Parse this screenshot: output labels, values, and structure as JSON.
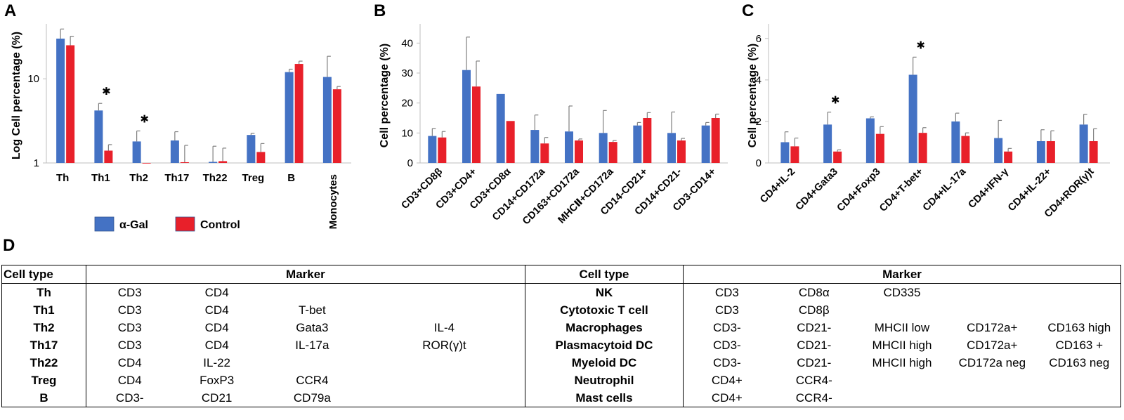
{
  "panel_labels": {
    "a": "A",
    "b": "B",
    "c": "C",
    "d": "D"
  },
  "colors": {
    "alpha_gal": "#4472C4",
    "control": "#E8202A",
    "error": "#7F7F7F",
    "axis": "#BFBFBF"
  },
  "chart_data": [
    {
      "panel": "A",
      "type": "bar",
      "scale": "log",
      "title": "",
      "xlabel": "",
      "ylabel": "Log Cell percentage (%)",
      "ylim": [
        1,
        40
      ],
      "yticks": [
        1,
        10
      ],
      "ytick_labels": [
        "1",
        "10"
      ],
      "categories": [
        "Th",
        "Th1",
        "Th2",
        "Th17",
        "Th22",
        "Treg",
        "B",
        "Monocytes"
      ],
      "series": [
        {
          "name": "α-Gal",
          "values": [
            30,
            4.2,
            1.8,
            1.85,
            1.03,
            2.15,
            12,
            10.5
          ],
          "errors": [
            9,
            0.9,
            0.6,
            0.5,
            0.55,
            0.1,
            1,
            8
          ]
        },
        {
          "name": "Control",
          "values": [
            25,
            1.4,
            1.0,
            1.02,
            1.05,
            1.35,
            15,
            7.5
          ],
          "errors": [
            7,
            0.25,
            0,
            0.6,
            0.45,
            0.35,
            1.2,
            0.6
          ]
        }
      ],
      "significant": [
        "Th1",
        "Th2"
      ],
      "significance_mark": "✱",
      "legend": {
        "position": "bottom",
        "labels": [
          "α-Gal",
          "Control"
        ]
      }
    },
    {
      "panel": "B",
      "type": "bar",
      "scale": "linear",
      "title": "",
      "xlabel": "",
      "ylabel": "Cell percentage (%)",
      "ylim": [
        0,
        45
      ],
      "yticks": [
        0,
        10,
        20,
        30,
        40
      ],
      "ytick_labels": [
        "0",
        "10",
        "20",
        "30",
        "40"
      ],
      "categories": [
        "CD3+CD8β",
        "CD3+CD4+",
        "CD3+CD8α",
        "CD14+CD172a",
        "CD163+CD172a",
        "MHCⅡ+CD172a",
        "CD14-CD21+",
        "CD14+CD21-",
        "CD3-CD14+"
      ],
      "series": [
        {
          "name": "α-Gal",
          "values": [
            9,
            31,
            23,
            11,
            10.5,
            10,
            12.5,
            10,
            12.5
          ],
          "errors": [
            2.5,
            11,
            0,
            5,
            8.5,
            7.5,
            1,
            7,
            1
          ]
        },
        {
          "name": "Control",
          "values": [
            8.5,
            25.5,
            14,
            6.5,
            7.5,
            7,
            15,
            7.5,
            15
          ],
          "errors": [
            2,
            8.5,
            0,
            2,
            0.5,
            0.5,
            1.8,
            0.7,
            1.3
          ]
        }
      ],
      "significant": []
    },
    {
      "panel": "C",
      "type": "bar",
      "scale": "linear",
      "title": "",
      "xlabel": "",
      "ylabel": "Cell percentage (%)",
      "ylim": [
        0,
        6.5
      ],
      "yticks": [
        0,
        2,
        4,
        6
      ],
      "ytick_labels": [
        "0",
        "2",
        "4",
        "6"
      ],
      "categories": [
        "CD4+IL-2",
        "CD4+Gata3",
        "CD4+Foxp3",
        "CD4+T-bet+",
        "CD4+IL-17a",
        "CD4+IFN-γ",
        "CD4+IL-22+",
        "CD4+ROR(γ)t"
      ],
      "series": [
        {
          "name": "α-Gal",
          "values": [
            1.0,
            1.85,
            2.15,
            4.25,
            2.0,
            1.2,
            1.05,
            1.85
          ],
          "errors": [
            0.5,
            0.6,
            0.07,
            0.85,
            0.4,
            0.85,
            0.55,
            0.5
          ]
        },
        {
          "name": "Control",
          "values": [
            0.8,
            0.55,
            1.4,
            1.45,
            1.3,
            0.55,
            1.05,
            1.05
          ],
          "errors": [
            0.4,
            0.08,
            0.35,
            0.25,
            0.15,
            0.15,
            0.5,
            0.6
          ]
        }
      ],
      "significant": [
        "CD4+Gata3",
        "CD4+T-bet+"
      ],
      "significance_mark": "✱"
    }
  ],
  "table": {
    "headers": [
      "Cell type",
      "Marker",
      "Cell type",
      "Marker"
    ],
    "rows": [
      {
        "left_type": "Th",
        "left_markers": [
          "CD3",
          "CD4",
          "",
          ""
        ],
        "right_type": "NK",
        "right_markers": [
          "CD3",
          "CD8α",
          "CD335",
          "",
          ""
        ]
      },
      {
        "left_type": "Th1",
        "left_markers": [
          "CD3",
          "CD4",
          "T-bet",
          ""
        ],
        "right_type": "Cytotoxic T cell",
        "right_markers": [
          "CD3",
          "CD8β",
          "",
          "",
          ""
        ]
      },
      {
        "left_type": "Th2",
        "left_markers": [
          "CD3",
          "CD4",
          "Gata3",
          "IL-4"
        ],
        "right_type": "Macrophages",
        "right_markers": [
          "CD3-",
          "CD21-",
          "MHCII low",
          "CD172a+",
          "CD163 high"
        ]
      },
      {
        "left_type": "Th17",
        "left_markers": [
          "CD3",
          "CD4",
          "IL-17a",
          "ROR(γ)t"
        ],
        "right_type": "Plasmacytoid DC",
        "right_markers": [
          "CD3-",
          "CD21-",
          "MHCII high",
          "CD172a+",
          "CD163 +"
        ]
      },
      {
        "left_type": "Th22",
        "left_markers": [
          "CD4",
          "IL-22",
          "",
          ""
        ],
        "right_type": "Myeloid DC",
        "right_markers": [
          "CD3-",
          "CD21-",
          "MHCII high",
          "CD172a neg",
          "CD163 neg"
        ]
      },
      {
        "left_type": "Treg",
        "left_markers": [
          "CD4",
          "FoxP3",
          "CCR4",
          ""
        ],
        "right_type": "Neutrophil",
        "right_markers": [
          "CD4+",
          "CCR4-",
          "",
          "",
          ""
        ]
      },
      {
        "left_type": "B",
        "left_markers": [
          "CD3-",
          "CD21",
          "CD79a",
          ""
        ],
        "right_type": "Mast cells",
        "right_markers": [
          "CD4+",
          "CCR4-",
          "",
          "",
          ""
        ]
      }
    ]
  }
}
